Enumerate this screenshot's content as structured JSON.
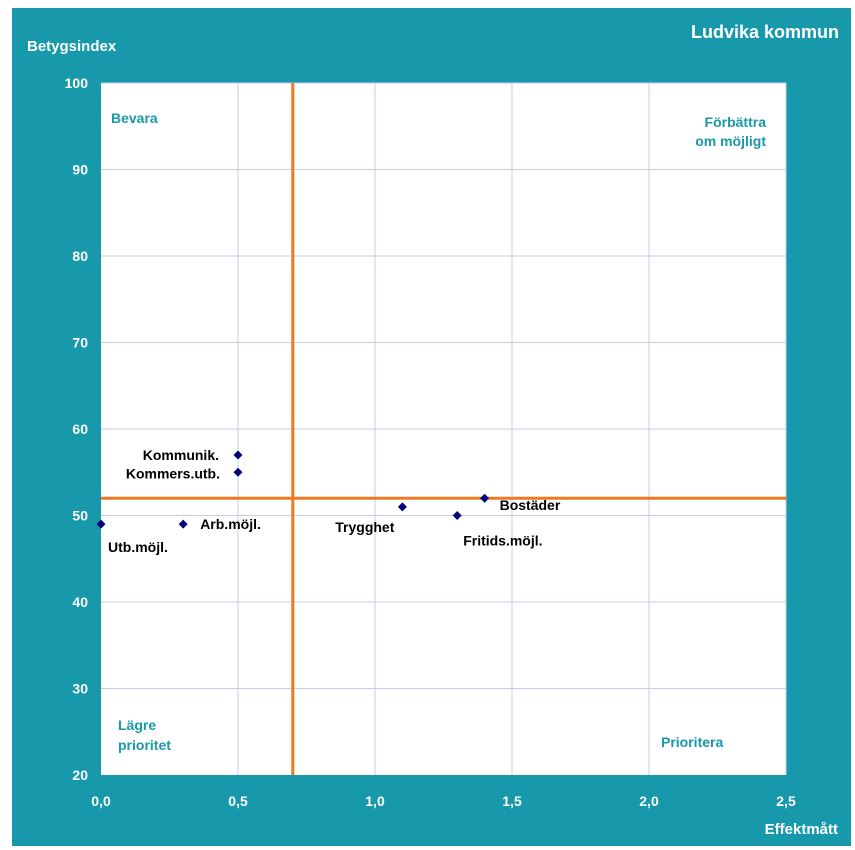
{
  "chart_data": {
    "type": "scatter",
    "title": "Ludvika kommun",
    "xlabel": "Effektmått",
    "ylabel": "Betygsindex",
    "xlim": [
      0,
      2.5
    ],
    "ylim": [
      20,
      100
    ],
    "x_ticks": [
      "0,0",
      "0,5",
      "1,0",
      "1,5",
      "2,0",
      "2,5"
    ],
    "y_ticks": [
      "20",
      "30",
      "40",
      "50",
      "60",
      "70",
      "80",
      "90",
      "100"
    ],
    "grid": true,
    "points": [
      {
        "label": "Kommunik.",
        "x": 0.5,
        "y": 57
      },
      {
        "label": "Kommers.utb.",
        "x": 0.5,
        "y": 55
      },
      {
        "label": "Arb.möjl.",
        "x": 0.3,
        "y": 49
      },
      {
        "label": "Utb.möjl.",
        "x": 0.0,
        "y": 49
      },
      {
        "label": "Trygghet",
        "x": 1.1,
        "y": 51
      },
      {
        "label": "Fritids.möjl.",
        "x": 1.3,
        "y": 50
      },
      {
        "label": "Bostäder",
        "x": 1.4,
        "y": 52
      }
    ],
    "reference_lines": {
      "x": 0.7,
      "y": 52
    },
    "quadrant_labels": {
      "top_left": "Bevara",
      "top_right": [
        "Förbättra",
        "om möjligt"
      ],
      "bottom_left": [
        "Lägre",
        "prioritet"
      ],
      "bottom_right": "Prioritera"
    },
    "colors": {
      "background": "#1899ab",
      "plot_area": "#ffffff",
      "gridlines": "#c8c8ec",
      "reference_lines": "#f07820",
      "markers": "#00007a",
      "quadrant_text": "#1899ab"
    }
  }
}
